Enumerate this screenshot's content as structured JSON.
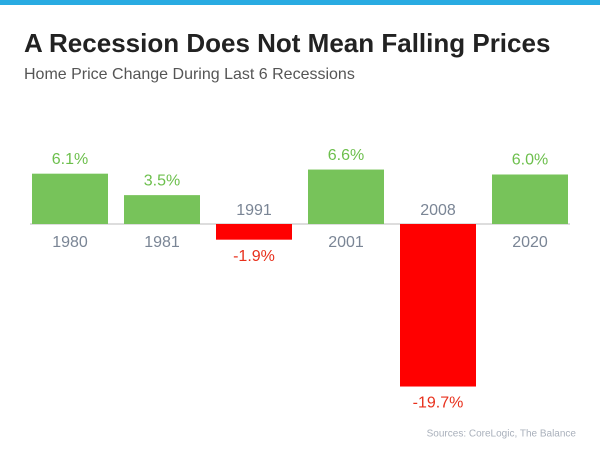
{
  "chart_data": {
    "type": "bar",
    "title": "A Recession Does Not Mean Falling Prices",
    "subtitle": "Home Price Change During Last 6 Recessions",
    "source": "Sources: CoreLogic, The Balance",
    "categories": [
      "1980",
      "1981",
      "1991",
      "2001",
      "2008",
      "2020"
    ],
    "values": [
      6.1,
      3.5,
      -1.9,
      6.6,
      -19.7,
      6.0
    ],
    "value_labels": [
      "6.1%",
      "3.5%",
      "-1.9%",
      "6.6%",
      "-19.7%",
      "6.0%"
    ],
    "color_positive": "#77c35a",
    "color_negative": "#ff0000"
  }
}
